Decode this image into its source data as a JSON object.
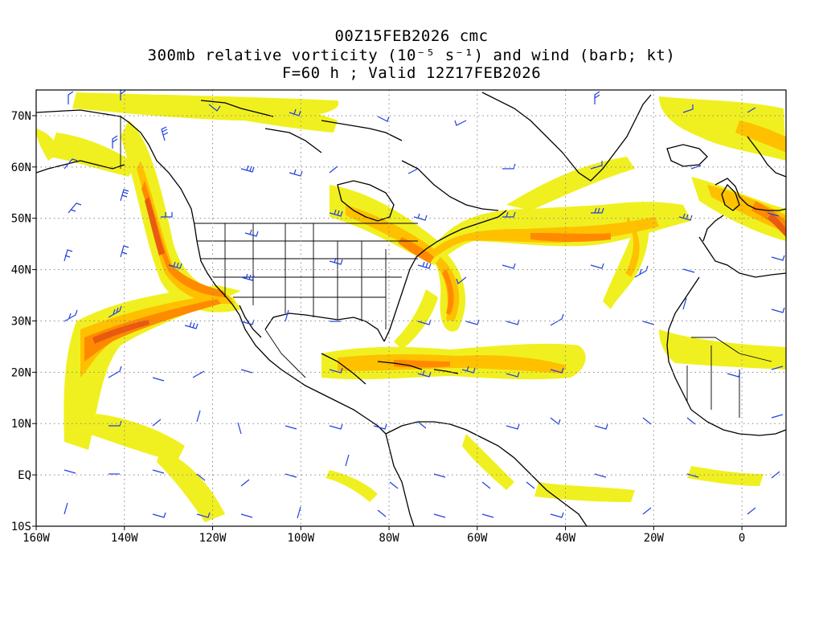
{
  "title": {
    "line1": "00Z15FEB2026 cmc",
    "line2": "300mb relative vorticity (10⁻⁵ s⁻¹) and wind (barb; kt)",
    "line3": "F=60 h ; Valid 12Z17FEB2026"
  },
  "map": {
    "lon_range": [
      -160,
      10
    ],
    "lat_range": [
      -10,
      75
    ],
    "lon_ticks": [
      {
        "value": -160,
        "label": "160W"
      },
      {
        "value": -140,
        "label": "140W"
      },
      {
        "value": -120,
        "label": "120W"
      },
      {
        "value": -100,
        "label": "100W"
      },
      {
        "value": -80,
        "label": "80W"
      },
      {
        "value": -60,
        "label": "60W"
      },
      {
        "value": -40,
        "label": "40W"
      },
      {
        "value": -20,
        "label": "20W"
      },
      {
        "value": 0,
        "label": "0"
      }
    ],
    "lat_ticks": [
      {
        "value": 70,
        "label": "70N"
      },
      {
        "value": 60,
        "label": "60N"
      },
      {
        "value": 50,
        "label": "50N"
      },
      {
        "value": 40,
        "label": "40N"
      },
      {
        "value": 30,
        "label": "30N"
      },
      {
        "value": 20,
        "label": "20N"
      },
      {
        "value": 10,
        "label": "10N"
      },
      {
        "value": 0,
        "label": "EQ"
      },
      {
        "value": -10,
        "label": "10S"
      }
    ],
    "colors": {
      "vorticity_low": "#f0f020",
      "vorticity_mid": "#ffc000",
      "vorticity_high": "#ff8a00",
      "vorticity_max": "#e85a10",
      "barb": "#2040e0",
      "coast": "#000000",
      "grid": "#888888"
    }
  }
}
